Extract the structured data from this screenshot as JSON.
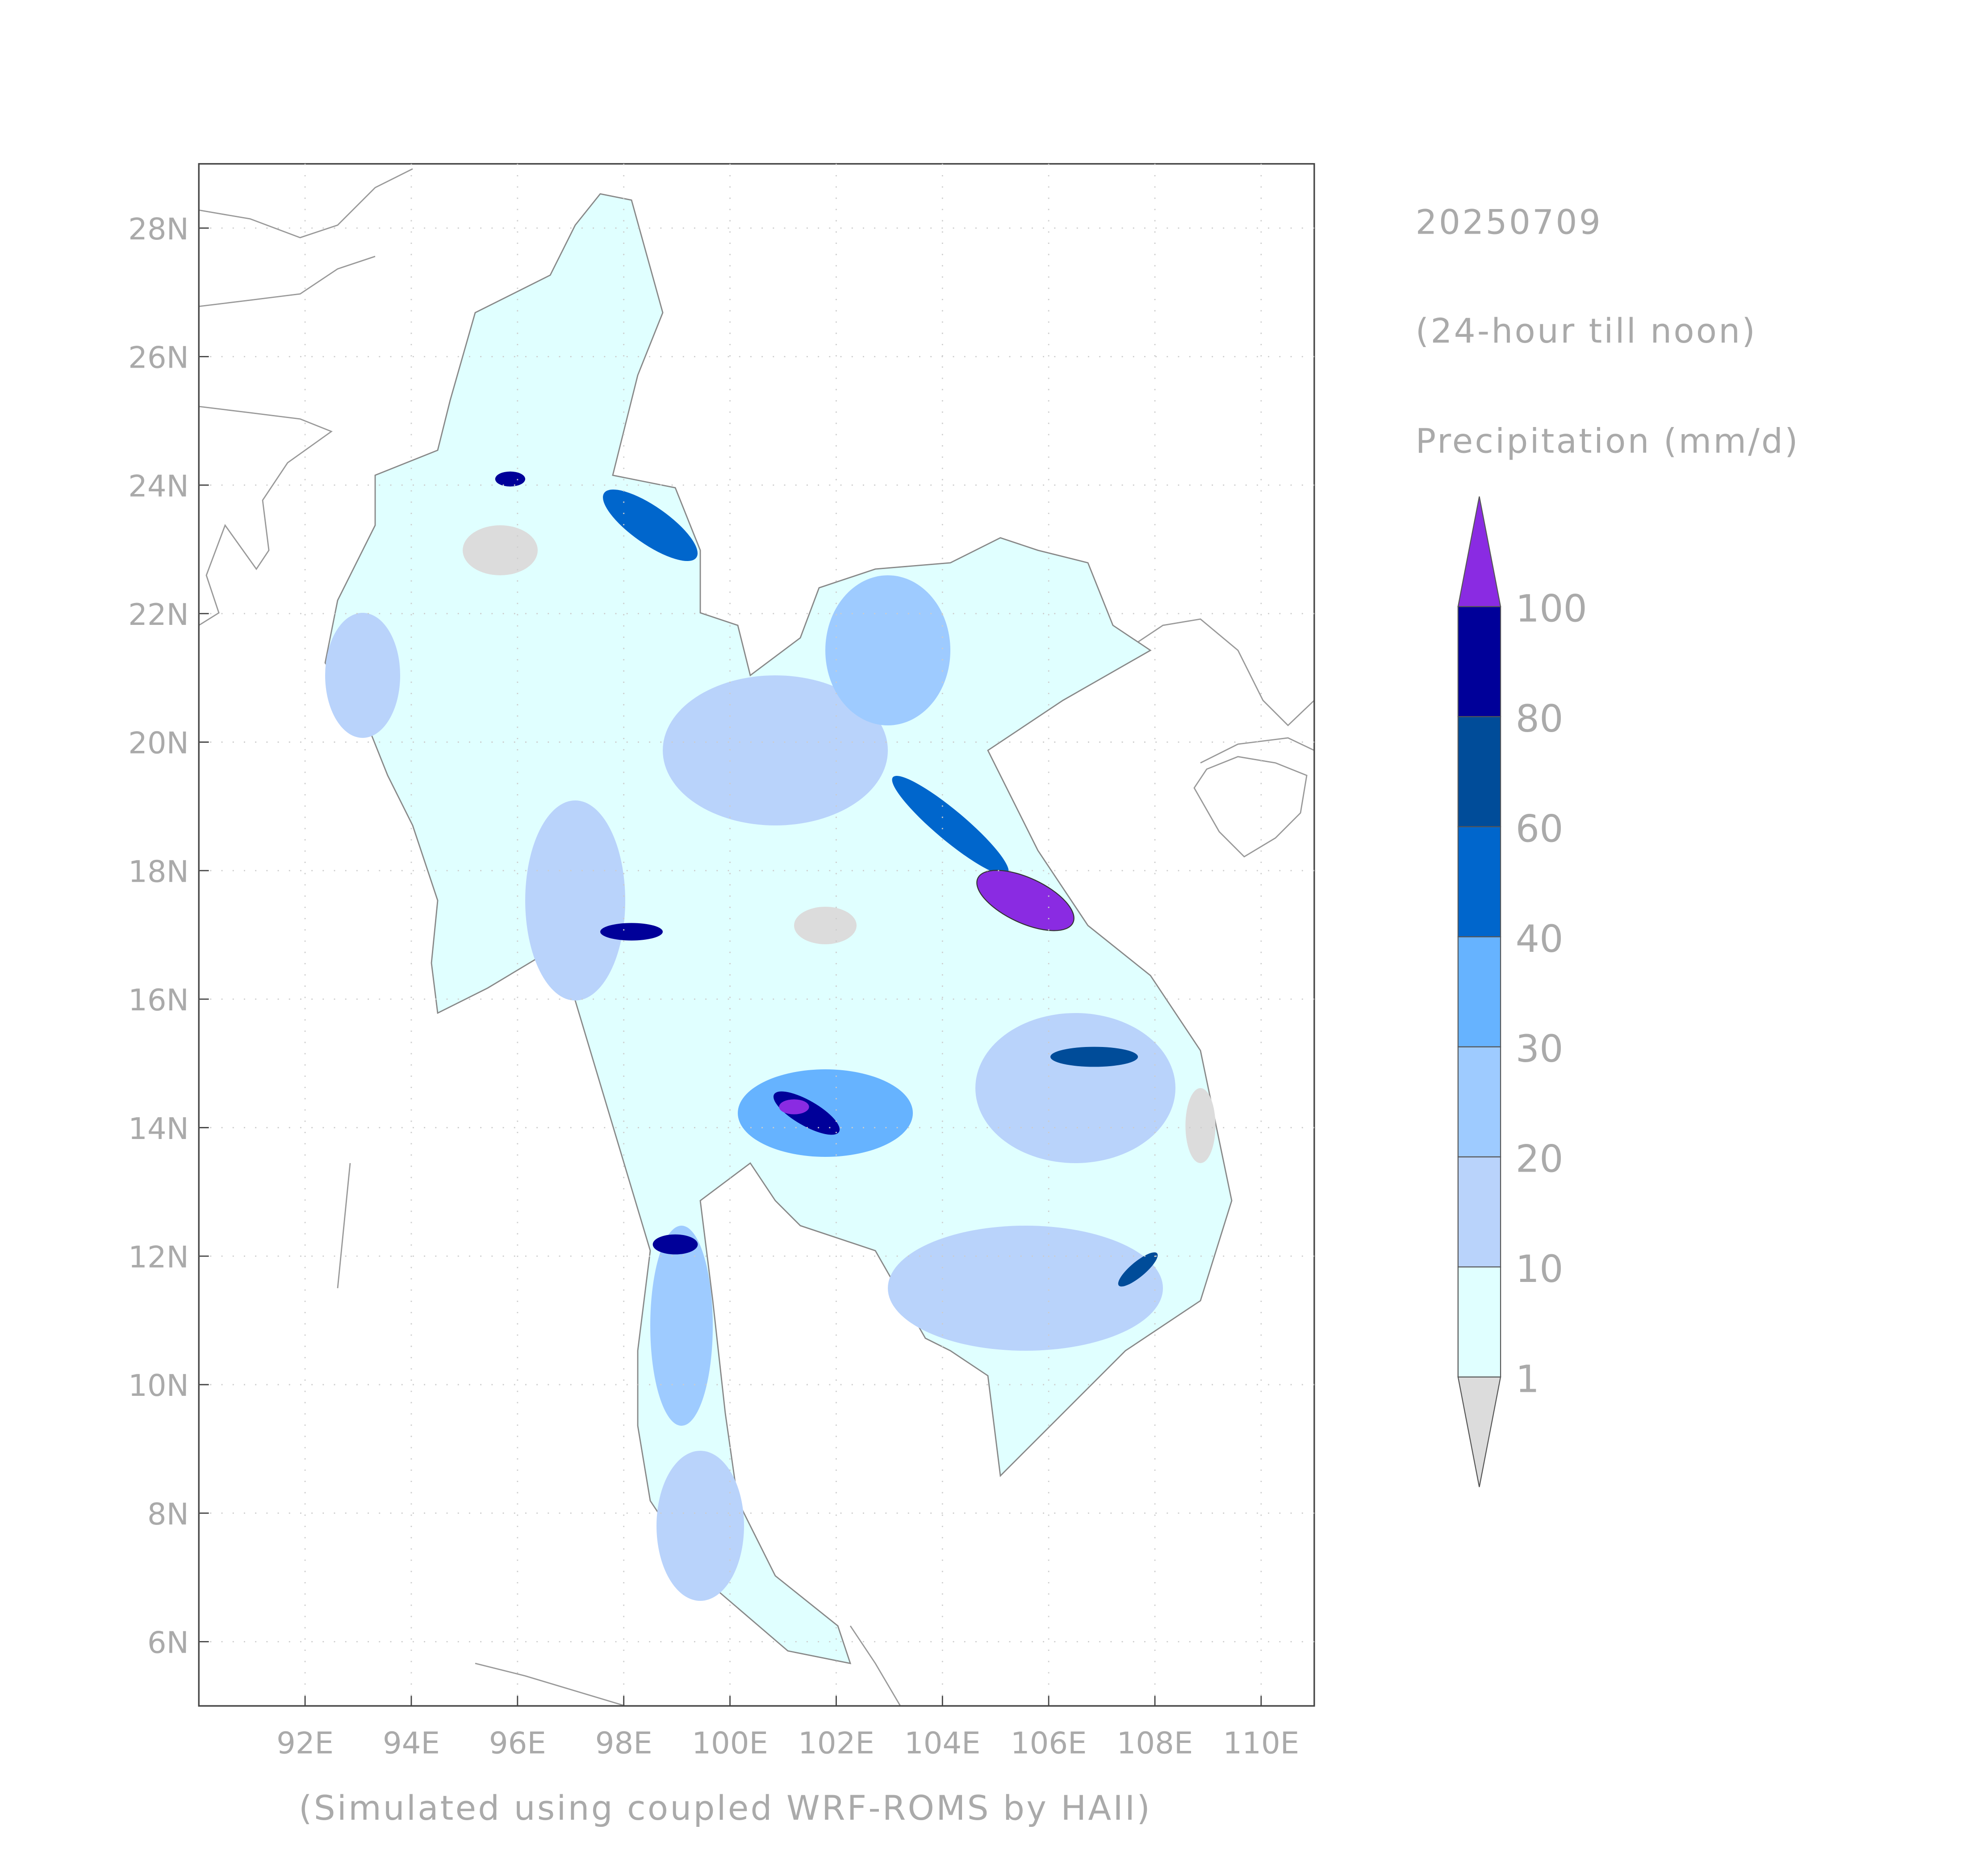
{
  "map": {
    "header": {
      "date": "20250709",
      "period": "(24-hour till noon)",
      "variable": "Precipitation (mm/d)"
    },
    "footer": "(Simulated using coupled WRF-ROMS by HAII)",
    "xlim": [
      90,
      111
    ],
    "ylim": [
      5,
      29
    ],
    "grid": true,
    "xticks": [
      {
        "value": 92,
        "label": "92E"
      },
      {
        "value": 94,
        "label": "94E"
      },
      {
        "value": 96,
        "label": "96E"
      },
      {
        "value": 98,
        "label": "98E"
      },
      {
        "value": 100,
        "label": "100E"
      },
      {
        "value": 102,
        "label": "102E"
      },
      {
        "value": 104,
        "label": "104E"
      },
      {
        "value": 106,
        "label": "106E"
      },
      {
        "value": 108,
        "label": "108E"
      },
      {
        "value": 110,
        "label": "110E"
      }
    ],
    "yticks": [
      {
        "value": 6,
        "label": "6N"
      },
      {
        "value": 8,
        "label": "8N"
      },
      {
        "value": 10,
        "label": "10N"
      },
      {
        "value": 12,
        "label": "12N"
      },
      {
        "value": 14,
        "label": "14N"
      },
      {
        "value": 16,
        "label": "16N"
      },
      {
        "value": 18,
        "label": "18N"
      },
      {
        "value": 20,
        "label": "20N"
      },
      {
        "value": 22,
        "label": "22N"
      },
      {
        "value": 24,
        "label": "24N"
      },
      {
        "value": 26,
        "label": "26N"
      },
      {
        "value": 28,
        "label": "28N"
      }
    ],
    "legend": {
      "levels": [
        1,
        10,
        20,
        30,
        40,
        60,
        80,
        100
      ],
      "colors": [
        "#dcdcdc",
        "#e0ffff",
        "#b9d3fb",
        "#9ecbff",
        "#66b3ff",
        "#0066cc",
        "#004c99",
        "#000099",
        "#8a2be2"
      ]
    }
  }
}
